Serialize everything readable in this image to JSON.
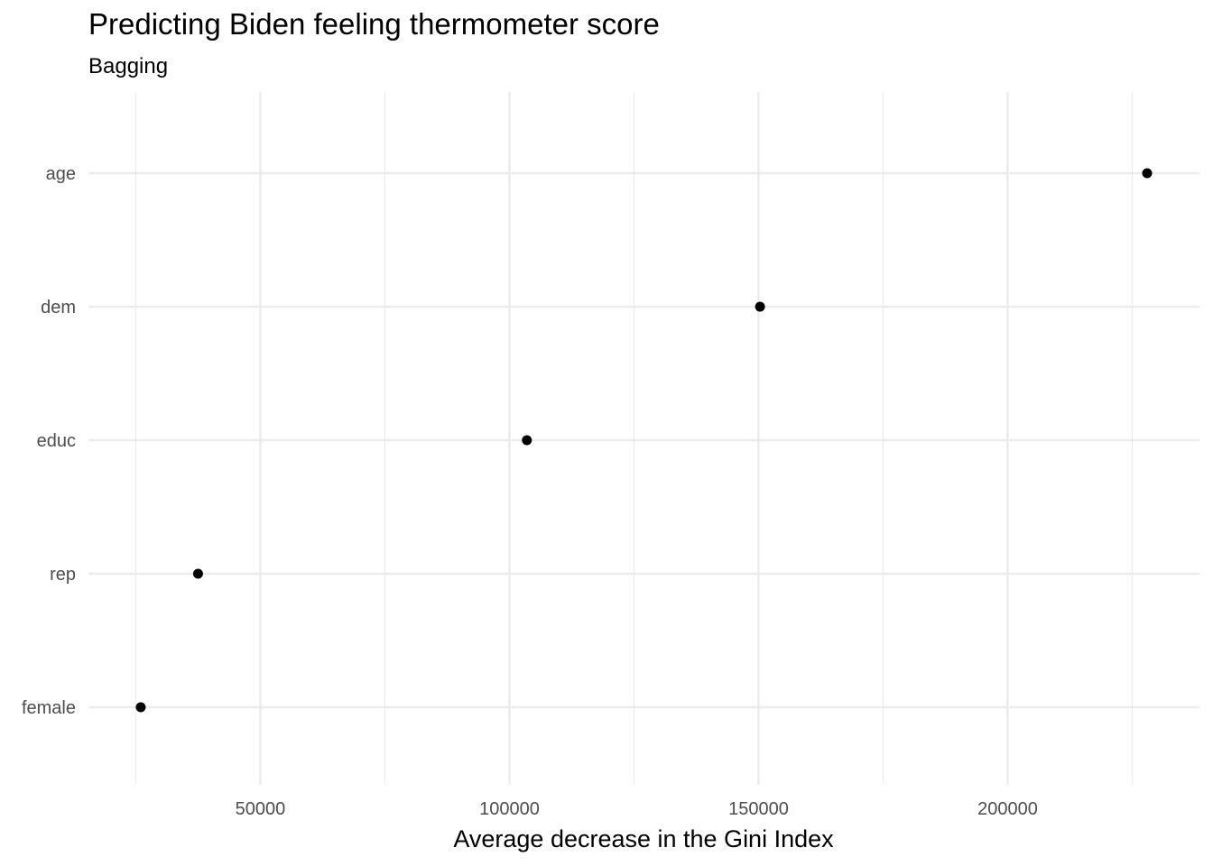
{
  "chart_data": {
    "type": "scatter",
    "title": "Predicting Biden feeling thermometer score",
    "subtitle": "Bagging",
    "xlabel": "Average decrease in the Gini Index",
    "ylabel": "",
    "categories": [
      "age",
      "dem",
      "educ",
      "rep",
      "female"
    ],
    "values": [
      228000,
      150300,
      103500,
      37500,
      26000
    ],
    "xlim": [
      15500,
      238500
    ],
    "xticks": [
      50000,
      100000,
      150000,
      200000
    ],
    "x_tick_labels": [
      "50000",
      "100000",
      "150000",
      "200000"
    ],
    "minor_gridlines": [
      25000,
      75000,
      125000,
      175000,
      225000
    ],
    "grid": true,
    "legend": "none",
    "point_color": "#000000",
    "grid_color": "#ebebeb"
  }
}
